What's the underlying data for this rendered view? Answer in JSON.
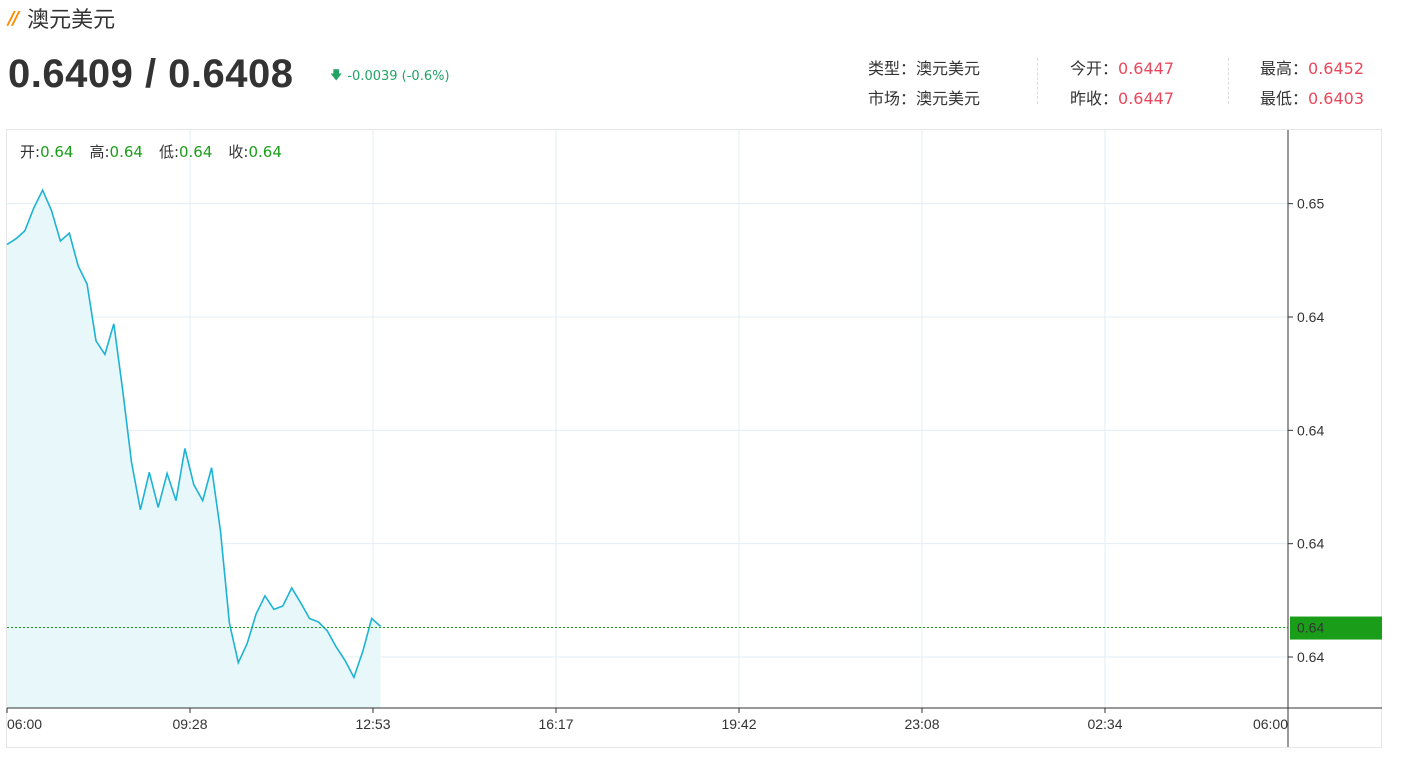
{
  "header": {
    "slash": "//",
    "title": "澳元美元",
    "price": "0.6409 / 0.6408",
    "change": "-0.0039 (-0.6%)",
    "change_arrow": "down-arrow-icon"
  },
  "info": {
    "type_label": "类型：",
    "type_value": "澳元美元",
    "market_label": "市场：",
    "market_value": "澳元美元",
    "open_label": "今开：",
    "open_value": "0.6447",
    "prev_close_label": "昨收：",
    "prev_close_value": "0.6447",
    "high_label": "最高：",
    "high_value": "0.6452",
    "low_label": "最低：",
    "low_value": "0.6403"
  },
  "ohlc": {
    "open_label": "开:",
    "open_value": "0.64",
    "high_label": "高:",
    "high_value": "0.64",
    "low_label": "低:",
    "low_value": "0.64",
    "close_label": "收:",
    "close_value": "0.64"
  },
  "chart_data": {
    "type": "area",
    "x_tick_labels": [
      "06:00",
      "09:28",
      "12:53",
      "16:17",
      "19:42",
      "23:08",
      "02:34",
      "06:00"
    ],
    "y_tick_labels": [
      "0.65",
      "0.64",
      "0.64",
      "0.64",
      "0.64"
    ],
    "y_tick_values": [
      0.645,
      0.644,
      0.643,
      0.642,
      0.641
    ],
    "ylim": [
      0.64055,
      0.64565
    ],
    "last_price_label": "0.64",
    "last_price": 0.64126,
    "grid": true,
    "colors": {
      "line": "#1cb3d4",
      "fill": "#e8f7fa",
      "last_marker": "#1a9e1a",
      "grid": "#e3edf3"
    },
    "series": [
      {
        "x": [
          "06:00",
          "06:10",
          "06:20",
          "06:30",
          "06:40",
          "06:50",
          "07:00",
          "07:10",
          "07:20",
          "07:30",
          "07:40",
          "07:50",
          "08:00",
          "08:10",
          "08:20",
          "08:30",
          "08:40",
          "08:50",
          "09:00",
          "09:10",
          "09:20",
          "09:30",
          "09:40",
          "09:50",
          "10:00",
          "10:10",
          "10:20",
          "10:30",
          "10:40",
          "10:50",
          "11:00",
          "11:10",
          "11:20",
          "11:30",
          "11:40",
          "11:50",
          "12:00",
          "12:10",
          "12:20",
          "12:30",
          "12:40",
          "12:50",
          "13:00"
        ],
        "values": [
          0.64464,
          0.64469,
          0.64476,
          0.64496,
          0.64512,
          0.64494,
          0.64467,
          0.64474,
          0.64445,
          0.64429,
          0.64379,
          0.64367,
          0.64394,
          0.64336,
          0.64272,
          0.6423,
          0.64263,
          0.64232,
          0.64262,
          0.64238,
          0.64284,
          0.64252,
          0.64238,
          0.64267,
          0.64211,
          0.6413,
          0.64095,
          0.64112,
          0.64138,
          0.64154,
          0.64142,
          0.64145,
          0.64161,
          0.64148,
          0.64134,
          0.64131,
          0.64123,
          0.64109,
          0.64097,
          0.64082,
          0.64105,
          0.64134,
          0.64127
        ]
      }
    ]
  }
}
